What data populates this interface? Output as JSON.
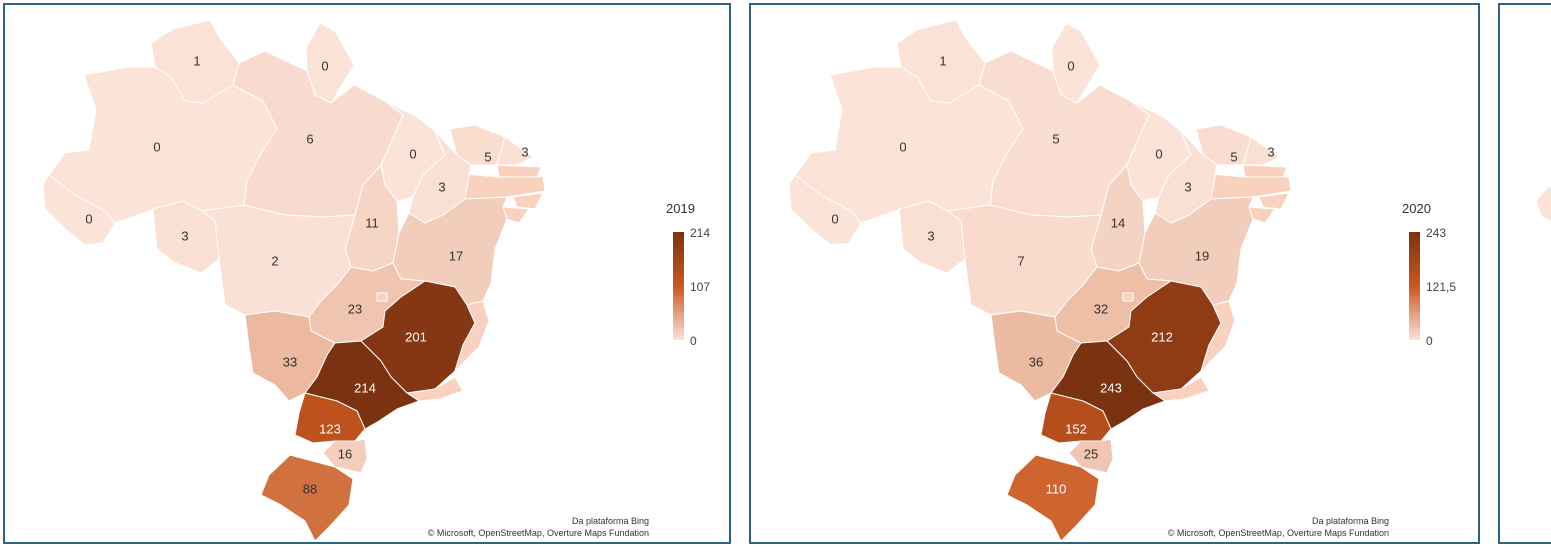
{
  "panels": [
    {
      "year": "2019",
      "legend": {
        "max": "214",
        "mid": "107",
        "min": "0"
      },
      "attribution": {
        "line1": "Da plataforma Bing",
        "line2": "© Microsoft, OpenStreetMap, Overture Maps Fundation"
      },
      "values": {
        "RR": "1",
        "AP": "0",
        "AM": "0",
        "PA": "6",
        "MA": "0",
        "CE": "5",
        "PI": "3",
        "RN": "3",
        "AC": "0",
        "RO": "3",
        "TO": "11",
        "BA": "17",
        "MT": "2",
        "GO": "23",
        "MG": "201",
        "MS": "33",
        "SP": "214",
        "PR": "123",
        "SC": "16",
        "RS": "88"
      }
    },
    {
      "year": "2020",
      "legend": {
        "max": "243",
        "mid": "121,5",
        "min": "0"
      },
      "attribution": {
        "line1": "Da plataforma Bing",
        "line2": "© Microsoft, OpenStreetMap, Overture Maps Fundation"
      },
      "values": {
        "RR": "1",
        "AP": "0",
        "AM": "0",
        "PA": "5",
        "MA": "0",
        "CE": "5",
        "PI": "3",
        "RN": "3",
        "AC": "0",
        "RO": "3",
        "TO": "14",
        "BA": "19",
        "MT": "7",
        "GO": "32",
        "MG": "212",
        "MS": "36",
        "SP": "243",
        "PR": "152",
        "SC": "25",
        "RS": "110"
      }
    }
  ],
  "colors": {
    "border": "#2e6482",
    "scale_low": "#fbe3d8",
    "scale_mid": "#c9581f",
    "scale_high": "#7b3210",
    "small_states": "#f9d2bf"
  }
}
